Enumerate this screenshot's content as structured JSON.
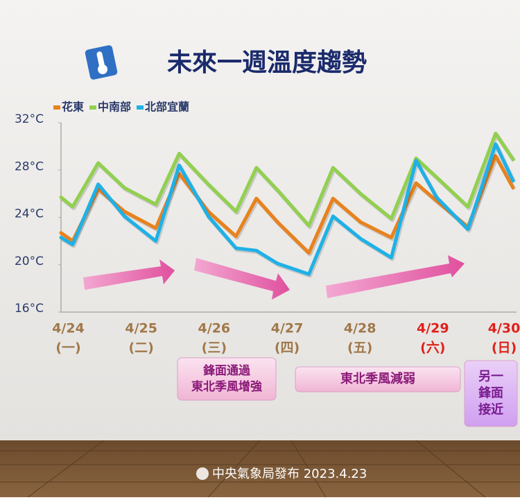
{
  "chart_data": {
    "type": "line",
    "title": "未來一週溫度趨勢",
    "x": [
      -0.1,
      0.06,
      0.41,
      0.77,
      1.2,
      1.52,
      1.92,
      2.3,
      2.58,
      2.87,
      3.3,
      3.63,
      4.01,
      4.43,
      4.77,
      5.05,
      5.48,
      5.86,
      6.1
    ],
    "series": [
      {
        "name": "花東",
        "color": "#e8821e",
        "values": [
          22.7,
          22.0,
          26.4,
          24.5,
          23.1,
          27.7,
          24.5,
          22.4,
          25.6,
          23.6,
          21.0,
          25.6,
          23.6,
          22.3,
          26.9,
          25.4,
          23.2,
          29.2,
          26.5
        ]
      },
      {
        "name": "中南部",
        "color": "#92d050",
        "values": [
          25.7,
          24.9,
          28.6,
          26.5,
          25.1,
          29.4,
          26.8,
          24.5,
          28.2,
          26.3,
          23.3,
          28.2,
          26.0,
          23.9,
          29.0,
          27.4,
          24.9,
          31.1,
          28.9
        ]
      },
      {
        "name": "北部宜蘭",
        "color": "#1fb1e6",
        "values": [
          22.3,
          21.7,
          26.8,
          24.1,
          22.0,
          28.4,
          24.1,
          21.4,
          21.2,
          20.1,
          19.2,
          24.1,
          22.2,
          20.6,
          28.8,
          25.7,
          23.0,
          30.2,
          27.1
        ]
      }
    ],
    "xlim": [
      -0.1,
      6.1
    ],
    "xticks": [
      {
        "value": 0,
        "label": "4/24"
      },
      {
        "value": 1,
        "label": "4/25"
      },
      {
        "value": 2,
        "label": "4/26"
      },
      {
        "value": 3,
        "label": "4/27"
      },
      {
        "value": 4,
        "label": "4/28"
      },
      {
        "value": 5,
        "label": "4/29"
      },
      {
        "value": 6,
        "label": "4/30"
      }
    ],
    "weekday_labels": [
      "(一)",
      "(二)",
      "(三)",
      "(四)",
      "(五)",
      "(六)",
      "(日)"
    ],
    "xtick_colors": [
      "#a0784a",
      "#a0784a",
      "#a0784a",
      "#a0784a",
      "#a0784a",
      "#e0201a",
      "#e0201a"
    ],
    "ylim": [
      16,
      32
    ],
    "yticks": [
      {
        "value": 16,
        "label": "16°C"
      },
      {
        "value": 20,
        "label": "20°C"
      },
      {
        "value": 24,
        "label": "24°C"
      },
      {
        "value": 28,
        "label": "28°C"
      },
      {
        "value": 32,
        "label": "32°C"
      }
    ],
    "grid": false,
    "legend": "top-left",
    "annotations": [
      {
        "lines": [
          "鋒面通過",
          "東北季風增強"
        ]
      },
      {
        "lines": [
          "東北季風減弱"
        ]
      },
      {
        "lines": [
          "另一",
          "鋒面",
          "接近"
        ]
      }
    ],
    "footer": "中央氣象局發布 2023.4.23"
  }
}
